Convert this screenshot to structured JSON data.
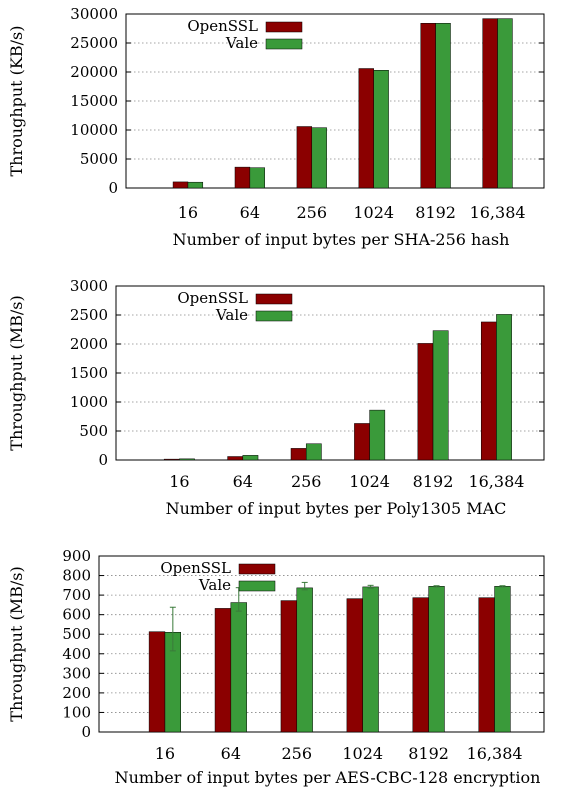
{
  "colors": {
    "openssl": "#8b0000",
    "vale": "#3a9a3a",
    "grid": "#888888",
    "axis": "#000000"
  },
  "chart_data": [
    {
      "type": "bar",
      "xlabel": "Number of input bytes per SHA-256 hash",
      "ylabel": "Throughput (KB/s)",
      "categories": [
        "16",
        "64",
        "256",
        "1024",
        "8192",
        "16,384"
      ],
      "ylim": [
        0,
        30000
      ],
      "yticks": [
        "0",
        "5000",
        "10000",
        "15000",
        "20000",
        "25000",
        "30000"
      ],
      "grid": true,
      "legend_position": "top-left",
      "series": [
        {
          "name": "OpenSSL",
          "values": [
            1050,
            3600,
            10600,
            20600,
            28400,
            29200
          ]
        },
        {
          "name": "Vale",
          "values": [
            1000,
            3500,
            10400,
            20300,
            28400,
            29200
          ]
        }
      ]
    },
    {
      "type": "bar",
      "xlabel": "Number of input bytes per Poly1305 MAC",
      "ylabel": "Throughput (MB/s)",
      "categories": [
        "16",
        "64",
        "256",
        "1024",
        "8192",
        "16,384"
      ],
      "ylim": [
        0,
        3000
      ],
      "yticks": [
        "0",
        "500",
        "1000",
        "1500",
        "2000",
        "2500",
        "3000"
      ],
      "grid": true,
      "legend_position": "top-left",
      "series": [
        {
          "name": "OpenSSL",
          "values": [
            15,
            60,
            200,
            630,
            2010,
            2380
          ]
        },
        {
          "name": "Vale",
          "values": [
            20,
            80,
            280,
            860,
            2230,
            2510
          ]
        }
      ]
    },
    {
      "type": "bar",
      "xlabel": "Number of input bytes per AES-CBC-128 encryption",
      "ylabel": "Throughput (MB/s)",
      "categories": [
        "16",
        "64",
        "256",
        "1024",
        "8192",
        "16,384"
      ],
      "ylim": [
        0,
        900
      ],
      "yticks": [
        "0",
        "100",
        "200",
        "300",
        "400",
        "500",
        "600",
        "700",
        "800",
        "900"
      ],
      "grid": true,
      "legend_position": "top-left",
      "series": [
        {
          "name": "OpenSSL",
          "values": [
            513,
            632,
            672,
            682,
            687,
            687
          ]
        },
        {
          "name": "Vale",
          "values": [
            510,
            662,
            737,
            742,
            745,
            745
          ],
          "error": [
            [
              415,
              638
            ],
            [
              618,
              738
            ],
            [
              727,
              765
            ],
            [
              735,
              750
            ],
            [
              742,
              748
            ],
            [
              742,
              748
            ]
          ]
        }
      ]
    }
  ]
}
